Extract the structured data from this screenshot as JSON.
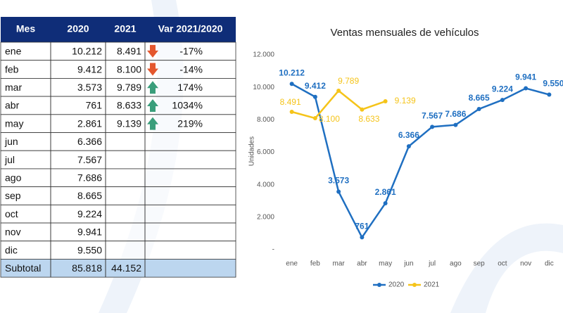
{
  "table": {
    "header": [
      "Mes",
      "2020",
      "2021",
      "Var 2021/2020"
    ],
    "rows": [
      [
        "ene",
        "10.212",
        "8.491",
        "-17%"
      ],
      [
        "feb",
        "9.412",
        "8.100",
        "-14%"
      ],
      [
        "mar",
        "3.573",
        "9.789",
        "174%"
      ],
      [
        "abr",
        "761",
        "8.633",
        "1034%"
      ],
      [
        "may",
        "2.861",
        "9.139",
        "219%"
      ],
      [
        "jun",
        "6.366"
      ],
      [
        "jul",
        "7.567"
      ],
      [
        "ago",
        "7.686"
      ],
      [
        "sep",
        "8.665"
      ],
      [
        "oct",
        "9.224"
      ],
      [
        "nov",
        "9.941"
      ],
      [
        "dic",
        "9.550"
      ],
      [
        "Subtotal",
        "85.818",
        "44.152"
      ]
    ]
  },
  "chart_data": {
    "type": "line",
    "title": "Ventas mensuales de vehículos",
    "y_label": "Unidades",
    "categories": [
      "ene",
      "feb",
      "mar",
      "abr",
      "may",
      "jun",
      "jul",
      "ago",
      "sep",
      "oct",
      "nov",
      "dic"
    ],
    "series": [
      {
        "name": "2020",
        "color": "#1f6fc1",
        "values": [
          10212,
          9412,
          3573,
          761,
          2861,
          6366,
          7567,
          7686,
          8665,
          9224,
          9941,
          9550
        ],
        "value_labels": [
          "10.212",
          "9.412",
          "3.573",
          "761",
          "2.861",
          "6.366",
          "7.567",
          "7.686",
          "8.665",
          "9.224",
          "9.941",
          "9.550"
        ]
      },
      {
        "name": "2021",
        "color": "#f5c41a",
        "values": [
          8491,
          8100,
          9789,
          8633,
          9139,
          null,
          null,
          null,
          null,
          null,
          null,
          null
        ],
        "value_labels": [
          "8.491",
          "8.100",
          "9.789",
          "8.633",
          "9.139",
          null,
          null,
          null,
          null,
          null,
          null,
          null
        ]
      }
    ],
    "ylim": [
      0,
      12000
    ],
    "yticks": [
      {
        "value": 0,
        "label": "-"
      },
      {
        "value": 2000,
        "label": "2.000"
      },
      {
        "value": 4000,
        "label": "4.000"
      },
      {
        "value": 6000,
        "label": "6.000"
      },
      {
        "value": 8000,
        "label": "8.000"
      },
      {
        "value": 10000,
        "label": "10.000"
      },
      {
        "value": 12000,
        "label": "12.000"
      }
    ],
    "legend": "bottom"
  }
}
